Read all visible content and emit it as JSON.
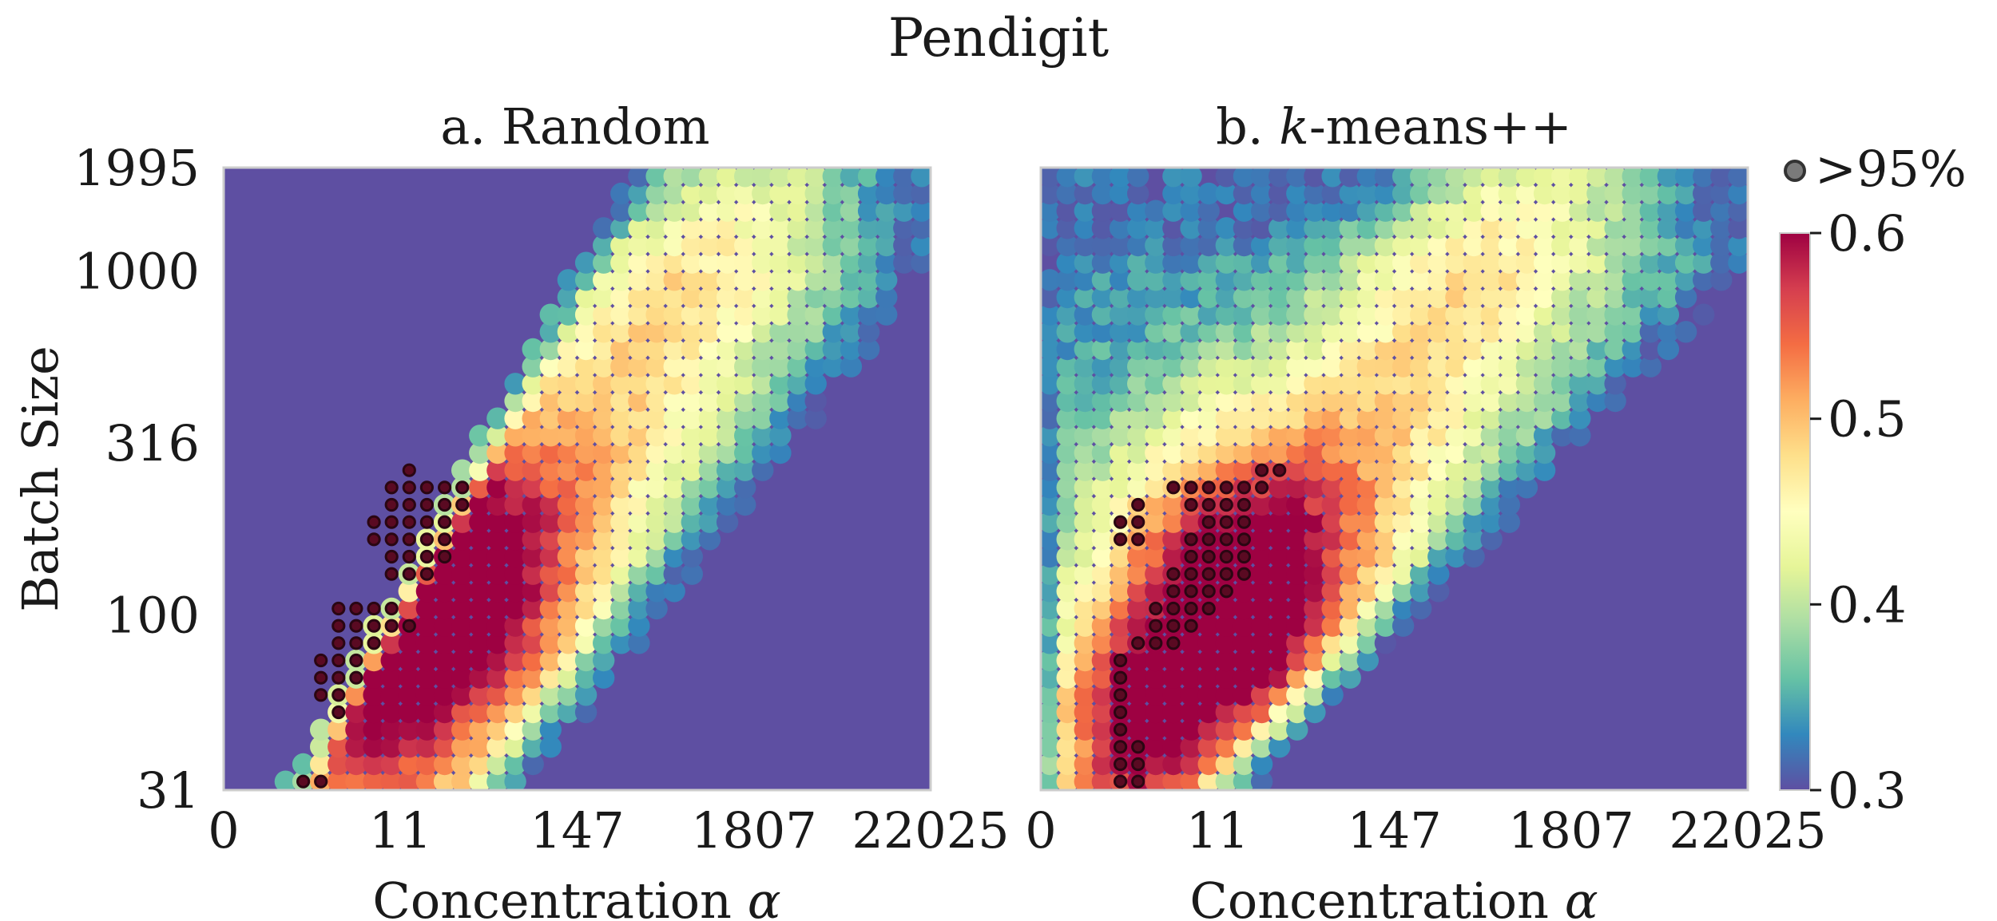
{
  "chart_data": {
    "type": "heatmap",
    "title": "Pendigit",
    "ylabel": "Batch Size",
    "y_ticks": [
      "1995",
      "1000",
      "316",
      "100",
      "31"
    ],
    "y_tick_values": [
      1995,
      1000,
      316,
      100,
      31
    ],
    "ylim": [
      31,
      1995
    ],
    "x_ticks": [
      "0",
      "11",
      "147",
      "1807",
      "22025"
    ],
    "x_tick_values": [
      0,
      11,
      147,
      1807,
      22025
    ],
    "xlim": [
      0,
      22025
    ],
    "grid_size": [
      40,
      36
    ],
    "legend_label": ">95%",
    "colorbar": {
      "min": 0.3,
      "max": 0.6,
      "ticks": [
        "0.6",
        "0.5",
        "0.4",
        "0.3"
      ],
      "tick_values": [
        0.6,
        0.5,
        0.4,
        0.3
      ],
      "colormap": "Spectral_r"
    },
    "colors": {
      "low": "#5e4fa2",
      "mid": "#ffffbf",
      "high": "#9e0142",
      "marker": "#3a1020",
      "frame": "#cccccc"
    },
    "panels": [
      {
        "title_prefix": "a. ",
        "title_italic": "",
        "title_suffix": "Random",
        "xlabel_text": "Concentration ",
        "xlabel_symbol": "α",
        "min_row_threshold_col": 0.5,
        "model": {
          "left_edge_col": 3.0,
          "left_edge_slope": 0.55,
          "right_edge_col": 17.0,
          "right_edge_slope": 0.78,
          "peak_col": 11.5,
          "peak_row": 12.5,
          "peak_value": 0.6,
          "secondary_peak_col": 6.5,
          "secondary_peak_row": 6.0,
          "top_fade_row": 35
        },
        "significant_points": [
          [
            9,
            17
          ],
          [
            10,
            17
          ],
          [
            11,
            17
          ],
          [
            12,
            17
          ],
          [
            13,
            17
          ],
          [
            9,
            16
          ],
          [
            10,
            16
          ],
          [
            11,
            16
          ],
          [
            12,
            16
          ],
          [
            13,
            16
          ],
          [
            8,
            15
          ],
          [
            9,
            15
          ],
          [
            10,
            15
          ],
          [
            11,
            15
          ],
          [
            12,
            15
          ],
          [
            8,
            14
          ],
          [
            9,
            14
          ],
          [
            10,
            14
          ],
          [
            11,
            14
          ],
          [
            12,
            14
          ],
          [
            9,
            13
          ],
          [
            10,
            13
          ],
          [
            11,
            13
          ],
          [
            12,
            13
          ],
          [
            9,
            12
          ],
          [
            10,
            12
          ],
          [
            11,
            12
          ],
          [
            10,
            18
          ],
          [
            6,
            10
          ],
          [
            7,
            10
          ],
          [
            8,
            10
          ],
          [
            9,
            10
          ],
          [
            6,
            9
          ],
          [
            7,
            9
          ],
          [
            8,
            9
          ],
          [
            9,
            9
          ],
          [
            10,
            9
          ],
          [
            6,
            8
          ],
          [
            7,
            8
          ],
          [
            8,
            8
          ],
          [
            5,
            7
          ],
          [
            6,
            7
          ],
          [
            7,
            7
          ],
          [
            5,
            6
          ],
          [
            6,
            6
          ],
          [
            7,
            6
          ],
          [
            5,
            5
          ],
          [
            6,
            5
          ],
          [
            6,
            4
          ],
          [
            4,
            0
          ],
          [
            5,
            0
          ]
        ]
      },
      {
        "title_prefix": "b. ",
        "title_italic": "k",
        "title_suffix": "-means++",
        "xlabel_text": "Concentration ",
        "xlabel_symbol": "α",
        "min_row_threshold_col": 0.5,
        "model": {
          "left_edge_col": -1.0,
          "left_edge_slope": 0.0,
          "right_edge_col": 12.0,
          "right_edge_slope": 0.95,
          "peak_col": 9.5,
          "peak_row": 12.0,
          "peak_value": 0.6,
          "secondary_peak_col": 4.0,
          "secondary_peak_row": 4.0,
          "top_fade_row": 36
        },
        "significant_points": [
          [
            12,
            18
          ],
          [
            13,
            18
          ],
          [
            7,
            17
          ],
          [
            8,
            17
          ],
          [
            9,
            17
          ],
          [
            10,
            17
          ],
          [
            11,
            17
          ],
          [
            12,
            17
          ],
          [
            5,
            16
          ],
          [
            8,
            16
          ],
          [
            9,
            16
          ],
          [
            10,
            16
          ],
          [
            11,
            16
          ],
          [
            4,
            15
          ],
          [
            5,
            15
          ],
          [
            9,
            15
          ],
          [
            10,
            15
          ],
          [
            11,
            15
          ],
          [
            4,
            14
          ],
          [
            5,
            14
          ],
          [
            8,
            14
          ],
          [
            9,
            14
          ],
          [
            10,
            14
          ],
          [
            11,
            14
          ],
          [
            8,
            13
          ],
          [
            9,
            13
          ],
          [
            10,
            13
          ],
          [
            11,
            13
          ],
          [
            7,
            12
          ],
          [
            8,
            12
          ],
          [
            9,
            12
          ],
          [
            10,
            12
          ],
          [
            11,
            12
          ],
          [
            7,
            11
          ],
          [
            8,
            11
          ],
          [
            9,
            11
          ],
          [
            10,
            11
          ],
          [
            6,
            10
          ],
          [
            7,
            10
          ],
          [
            8,
            10
          ],
          [
            9,
            10
          ],
          [
            6,
            9
          ],
          [
            7,
            9
          ],
          [
            8,
            9
          ],
          [
            5,
            8
          ],
          [
            6,
            8
          ],
          [
            7,
            8
          ],
          [
            4,
            7
          ],
          [
            4,
            6
          ],
          [
            4,
            5
          ],
          [
            4,
            4
          ],
          [
            4,
            3
          ],
          [
            4,
            2
          ],
          [
            5,
            2
          ],
          [
            4,
            1
          ],
          [
            5,
            1
          ],
          [
            4,
            0
          ],
          [
            5,
            0
          ]
        ]
      }
    ]
  }
}
